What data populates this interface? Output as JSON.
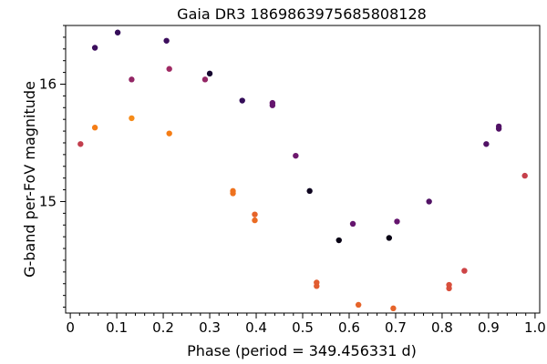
{
  "chart_data": {
    "type": "scatter",
    "title": "Gaia DR3 1869863975685808128",
    "xlabel": "Phase (period = 349.456331 d)",
    "ylabel": "G-band per-FoV magnitude",
    "xlim": [
      -0.01,
      1.01
    ],
    "ylim": [
      16.5,
      14.05
    ],
    "y_inverted": true,
    "x_ticks": [
      0,
      0.1,
      0.2,
      0.3,
      0.4,
      0.5,
      0.6,
      0.7,
      0.8,
      0.9,
      1.0
    ],
    "x_tick_labels": [
      "0",
      "0.1",
      "0.2",
      "0.3",
      "0.4",
      "0.5",
      "0.6",
      "0.7",
      "0.8",
      "0.9",
      "1.0"
    ],
    "y_ticks": [
      15,
      16
    ],
    "y_tick_labels": [
      "15",
      "16"
    ],
    "colormap": "inferno (darker = lower, brighter = higher)",
    "points": [
      {
        "x": 0.022,
        "y": 15.49,
        "c": 0.55
      },
      {
        "x": 0.053,
        "y": 15.63,
        "c": 0.75
      },
      {
        "x": 0.053,
        "y": 16.31,
        "c": 0.2
      },
      {
        "x": 0.102,
        "y": 16.44,
        "c": 0.18
      },
      {
        "x": 0.132,
        "y": 15.71,
        "c": 0.78
      },
      {
        "x": 0.132,
        "y": 16.04,
        "c": 0.42
      },
      {
        "x": 0.207,
        "y": 16.37,
        "c": 0.2
      },
      {
        "x": 0.213,
        "y": 15.58,
        "c": 0.75
      },
      {
        "x": 0.213,
        "y": 16.13,
        "c": 0.45
      },
      {
        "x": 0.29,
        "y": 16.04,
        "c": 0.42
      },
      {
        "x": 0.3,
        "y": 16.09,
        "c": 0.08
      },
      {
        "x": 0.35,
        "y": 15.07,
        "c": 0.72
      },
      {
        "x": 0.35,
        "y": 15.09,
        "c": 0.72
      },
      {
        "x": 0.37,
        "y": 15.86,
        "c": 0.18
      },
      {
        "x": 0.397,
        "y": 14.84,
        "c": 0.7
      },
      {
        "x": 0.397,
        "y": 14.89,
        "c": 0.68
      },
      {
        "x": 0.435,
        "y": 15.82,
        "c": 0.3
      },
      {
        "x": 0.435,
        "y": 15.84,
        "c": 0.3
      },
      {
        "x": 0.485,
        "y": 15.39,
        "c": 0.32
      },
      {
        "x": 0.515,
        "y": 15.09,
        "c": 0.05
      },
      {
        "x": 0.53,
        "y": 14.28,
        "c": 0.66
      },
      {
        "x": 0.53,
        "y": 14.31,
        "c": 0.66
      },
      {
        "x": 0.578,
        "y": 14.67,
        "c": 0.03
      },
      {
        "x": 0.608,
        "y": 14.81,
        "c": 0.3
      },
      {
        "x": 0.62,
        "y": 14.12,
        "c": 0.68
      },
      {
        "x": 0.686,
        "y": 14.69,
        "c": 0.03
      },
      {
        "x": 0.695,
        "y": 14.09,
        "c": 0.68
      },
      {
        "x": 0.703,
        "y": 14.83,
        "c": 0.3
      },
      {
        "x": 0.772,
        "y": 15.0,
        "c": 0.25
      },
      {
        "x": 0.815,
        "y": 14.26,
        "c": 0.62
      },
      {
        "x": 0.815,
        "y": 14.29,
        "c": 0.62
      },
      {
        "x": 0.848,
        "y": 14.41,
        "c": 0.58
      },
      {
        "x": 0.895,
        "y": 15.49,
        "c": 0.25
      },
      {
        "x": 0.922,
        "y": 15.62,
        "c": 0.25
      },
      {
        "x": 0.922,
        "y": 15.64,
        "c": 0.25
      },
      {
        "x": 0.978,
        "y": 15.22,
        "c": 0.56
      }
    ]
  }
}
